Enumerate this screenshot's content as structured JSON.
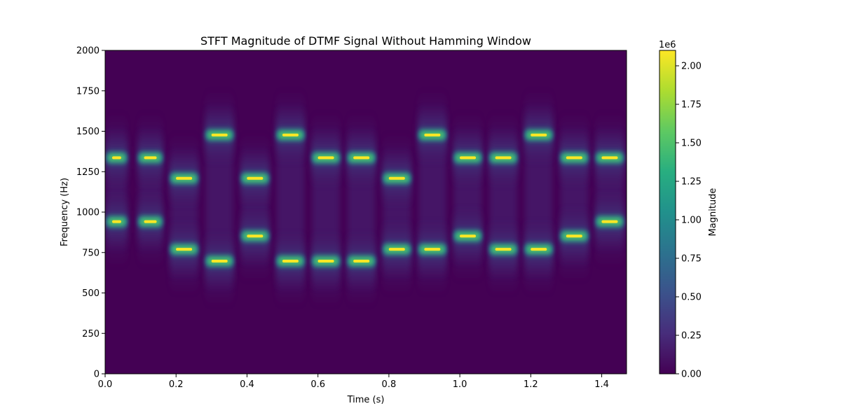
{
  "chart_data": {
    "type": "heatmap",
    "title": "STFT Magnitude of DTMF Signal Without Hamming Window",
    "xlabel": "Time (s)",
    "ylabel": "Frequency (Hz)",
    "xlim": [
      0,
      1.47
    ],
    "ylim": [
      0,
      2000
    ],
    "xticks": [
      0.0,
      0.2,
      0.4,
      0.6,
      0.8,
      1.0,
      1.2,
      1.4
    ],
    "xtick_labels": [
      "0.0",
      "0.2",
      "0.4",
      "0.6",
      "0.8",
      "1.0",
      "1.2",
      "1.4"
    ],
    "yticks": [
      0,
      250,
      500,
      750,
      1000,
      1250,
      1500,
      1750,
      2000
    ],
    "ytick_labels": [
      "0",
      "250",
      "500",
      "750",
      "1000",
      "1250",
      "1500",
      "1750",
      "2000"
    ],
    "colormap": "viridis",
    "grid": false,
    "tones": [
      {
        "t_start": 0.0,
        "t_end": 0.065,
        "low_hz": 941,
        "high_hz": 1336
      },
      {
        "t_start": 0.09,
        "t_end": 0.165,
        "low_hz": 941,
        "high_hz": 1336
      },
      {
        "t_start": 0.18,
        "t_end": 0.265,
        "low_hz": 770,
        "high_hz": 1209
      },
      {
        "t_start": 0.28,
        "t_end": 0.365,
        "low_hz": 697,
        "high_hz": 1477
      },
      {
        "t_start": 0.38,
        "t_end": 0.465,
        "low_hz": 852,
        "high_hz": 1209
      },
      {
        "t_start": 0.48,
        "t_end": 0.565,
        "low_hz": 697,
        "high_hz": 1477
      },
      {
        "t_start": 0.58,
        "t_end": 0.665,
        "low_hz": 697,
        "high_hz": 1336
      },
      {
        "t_start": 0.68,
        "t_end": 0.765,
        "low_hz": 697,
        "high_hz": 1336
      },
      {
        "t_start": 0.78,
        "t_end": 0.865,
        "low_hz": 770,
        "high_hz": 1209
      },
      {
        "t_start": 0.88,
        "t_end": 0.965,
        "low_hz": 770,
        "high_hz": 1477
      },
      {
        "t_start": 0.98,
        "t_end": 1.065,
        "low_hz": 852,
        "high_hz": 1336
      },
      {
        "t_start": 1.08,
        "t_end": 1.165,
        "low_hz": 770,
        "high_hz": 1336
      },
      {
        "t_start": 1.18,
        "t_end": 1.265,
        "low_hz": 770,
        "high_hz": 1477
      },
      {
        "t_start": 1.28,
        "t_end": 1.365,
        "low_hz": 852,
        "high_hz": 1336
      },
      {
        "t_start": 1.38,
        "t_end": 1.465,
        "low_hz": 941,
        "high_hz": 1336
      }
    ],
    "peak_magnitude": 2100000,
    "colorbar": {
      "label": "Magnitude",
      "min": 0,
      "max": 2100000,
      "multiplier": "1e6",
      "ticks": [
        0,
        250000,
        500000,
        750000,
        1000000,
        1250000,
        1500000,
        1750000,
        2000000
      ],
      "tick_labels": [
        "0.00",
        "0.25",
        "0.50",
        "0.75",
        "1.00",
        "1.25",
        "1.50",
        "1.75",
        "2.00"
      ]
    }
  }
}
